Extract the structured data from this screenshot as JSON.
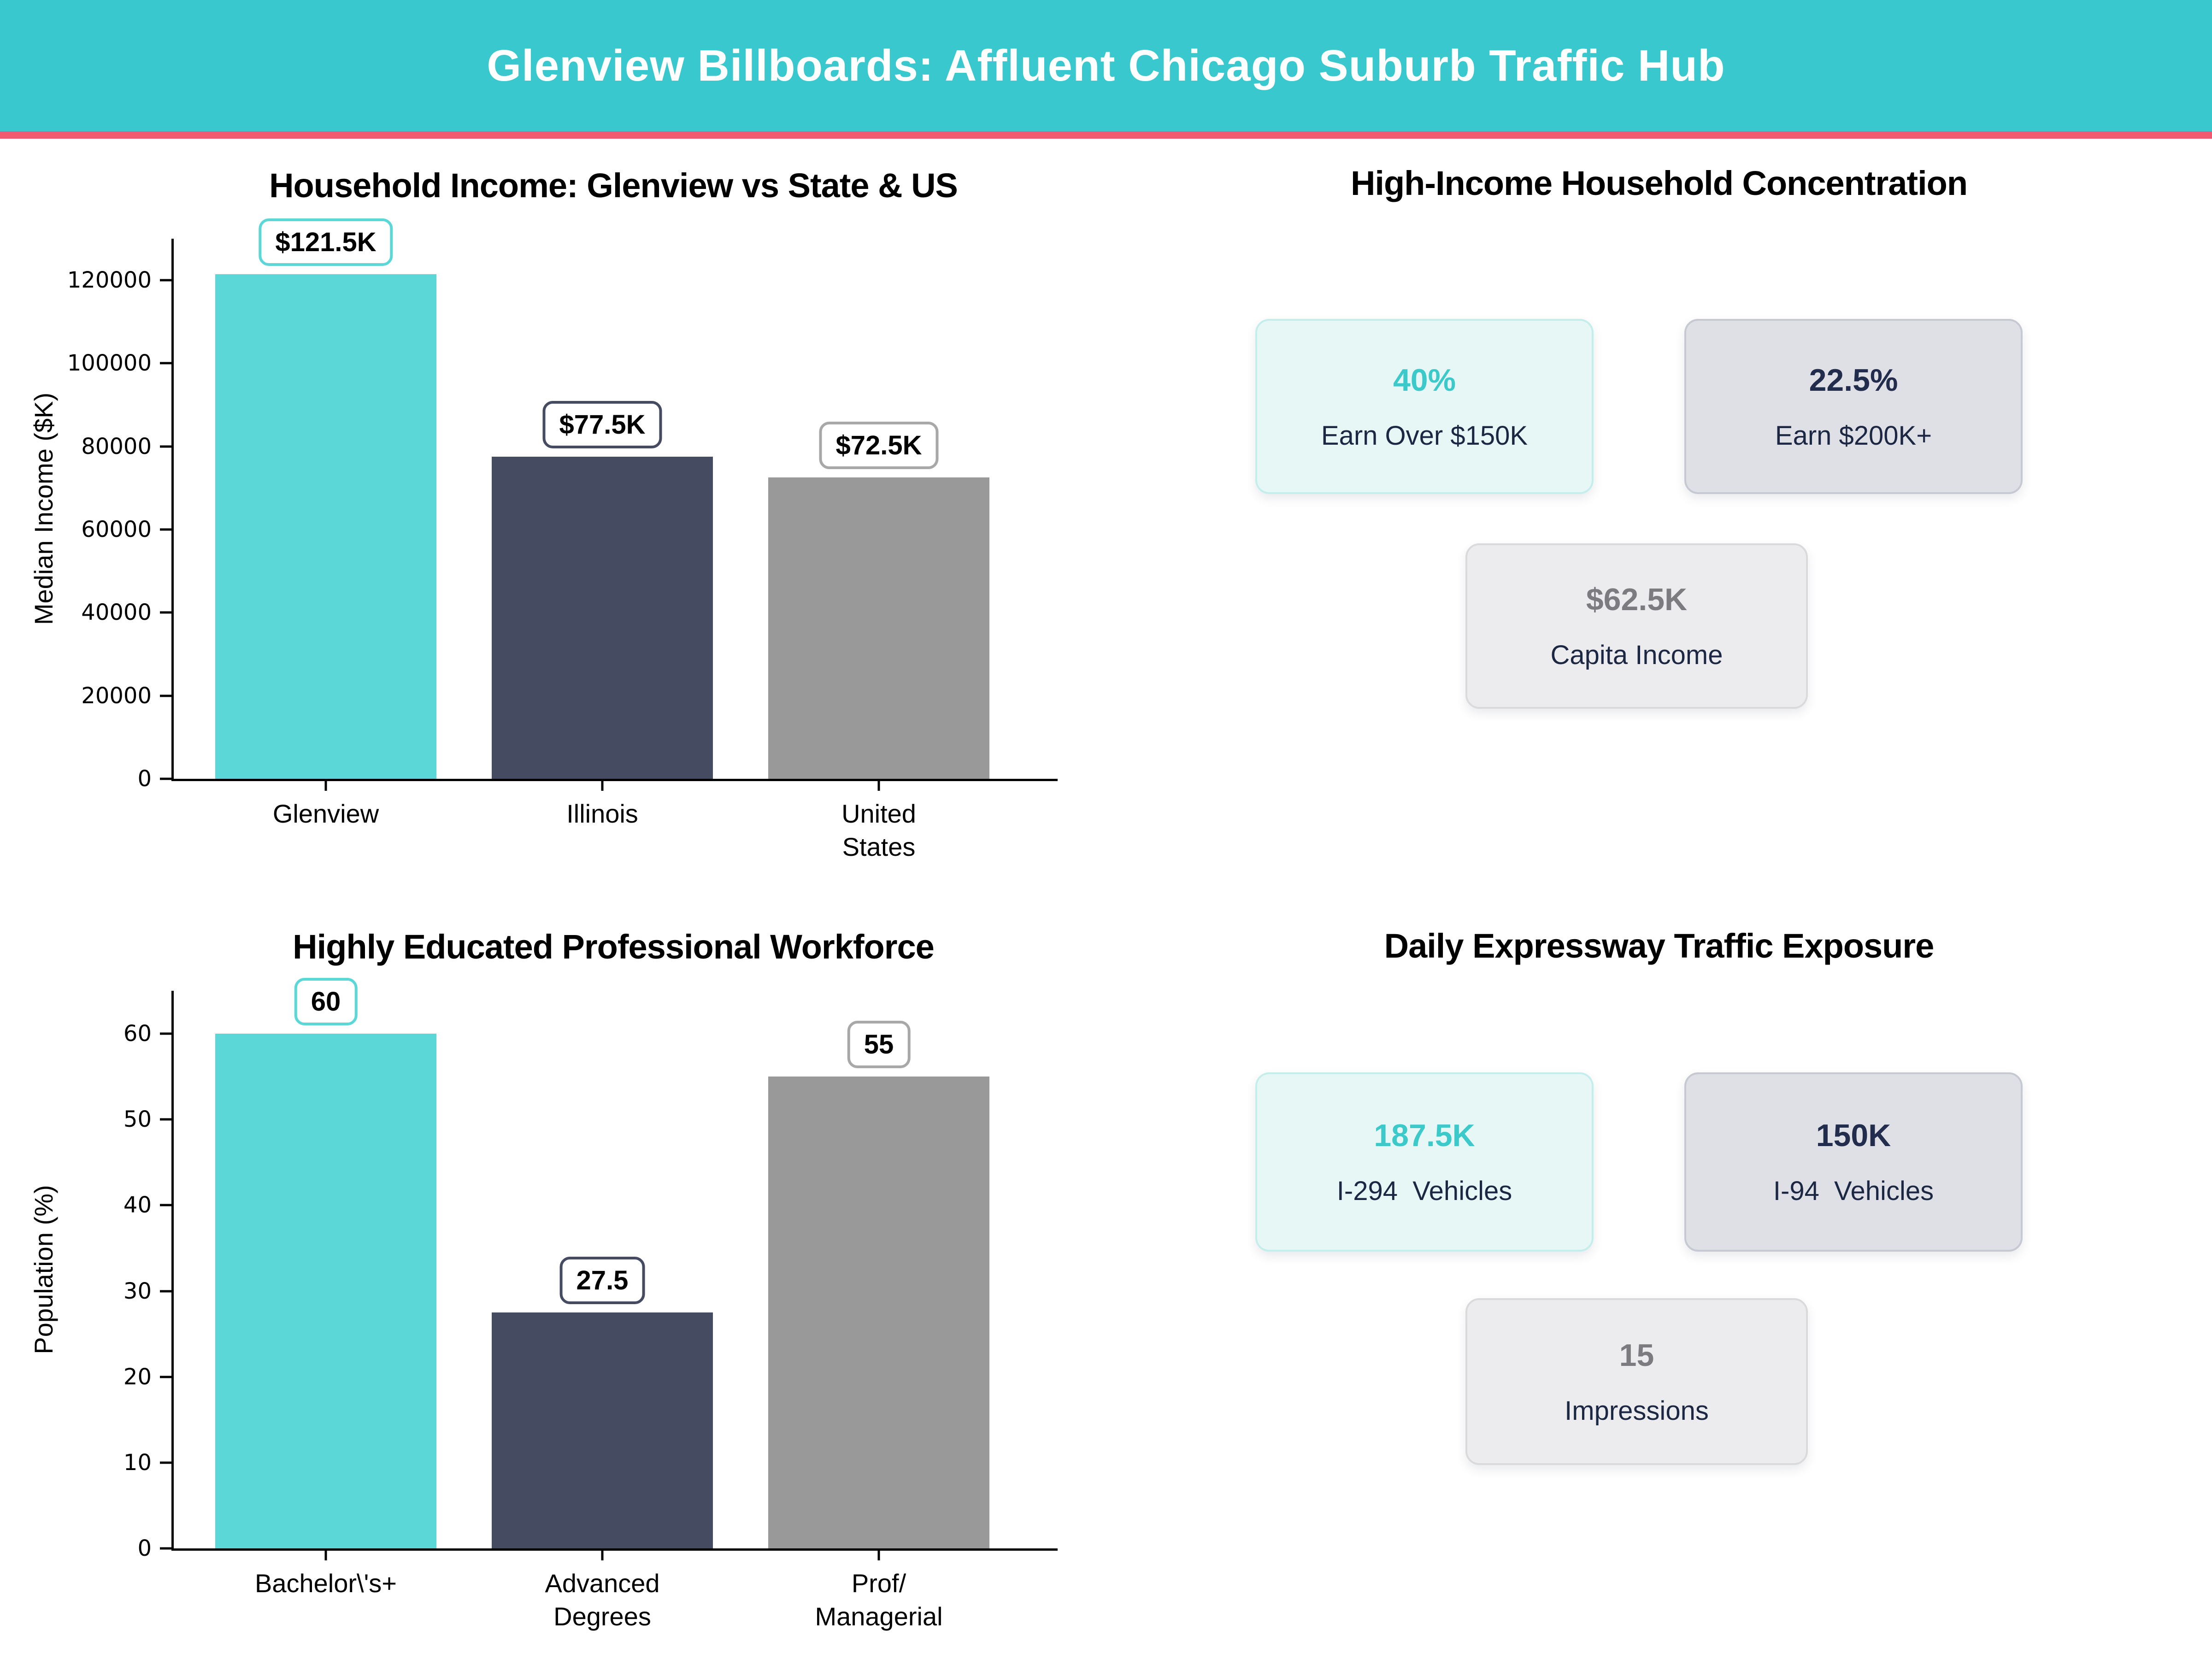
{
  "header": {
    "title": "Glenview Billboards: Affluent Chicago Suburb Traffic Hub"
  },
  "colors": {
    "teal": "#38C8CD",
    "pink": "#F0596F",
    "bar_teal": "#5BD7D7",
    "navy": "#454C62",
    "bar_gray": "#999999",
    "card_teal_bg": "#E7F7F6",
    "card_slate_bg": "#DFE0E6",
    "card_gray_bg": "#ECECEE",
    "number_teal": "#3CC9C9",
    "number_navy": "#222D4D",
    "number_gray": "#7C7C80",
    "label_navy": "#1C2744"
  },
  "chart_data": [
    {
      "type": "bar",
      "title": "Household Income: Glenview vs State & US",
      "categories": [
        "Glenview",
        "Illinois",
        "United\nStates"
      ],
      "values": [
        121500,
        77500,
        72500
      ],
      "value_labels": [
        "$121.5K",
        "$77.5K",
        "$72.5K"
      ],
      "bar_colors": [
        "#5BD7D7",
        "#454C62",
        "#999999"
      ],
      "label_border_colors": [
        "#5BD7D7",
        "#454C62",
        "#A8A8A8"
      ],
      "xlabel": "",
      "ylabel": "Median Income ($K)",
      "ylim": [
        0,
        130000
      ],
      "yticks": [
        0,
        20000,
        40000,
        60000,
        80000,
        100000,
        120000
      ],
      "grid": false,
      "legend": "none"
    },
    {
      "type": "bar",
      "title": "Highly Educated Professional Workforce",
      "categories": [
        "Bachelor\\'s+",
        "Advanced\nDegrees",
        "Prof/\nManagerial"
      ],
      "values": [
        60,
        27.5,
        55
      ],
      "value_labels": [
        "60",
        "27.5",
        "55"
      ],
      "bar_colors": [
        "#5BD7D7",
        "#454C62",
        "#999999"
      ],
      "label_border_colors": [
        "#5BD7D7",
        "#454C62",
        "#A8A8A8"
      ],
      "xlabel": "",
      "ylabel": "Population (%)",
      "ylim": [
        0,
        65
      ],
      "yticks": [
        0,
        10,
        20,
        30,
        40,
        50,
        60
      ],
      "grid": false,
      "legend": "none"
    }
  ],
  "stat_sections": [
    {
      "title": "High-Income Household Concentration",
      "cards": [
        {
          "value": "40%",
          "label": "Earn Over $150K",
          "style": "teal"
        },
        {
          "value": "22.5%",
          "label": "Earn $200K+",
          "style": "slate"
        },
        {
          "value": "$62.5K",
          "label": "Capita Income",
          "style": "gray"
        }
      ]
    },
    {
      "title": "Daily Expressway Traffic Exposure",
      "cards": [
        {
          "value": "187.5K",
          "label": "I-294  Vehicles",
          "style": "teal"
        },
        {
          "value": "150K",
          "label": "I-94  Vehicles",
          "style": "slate"
        },
        {
          "value": "15",
          "label": "Impressions",
          "style": "gray"
        }
      ]
    }
  ]
}
